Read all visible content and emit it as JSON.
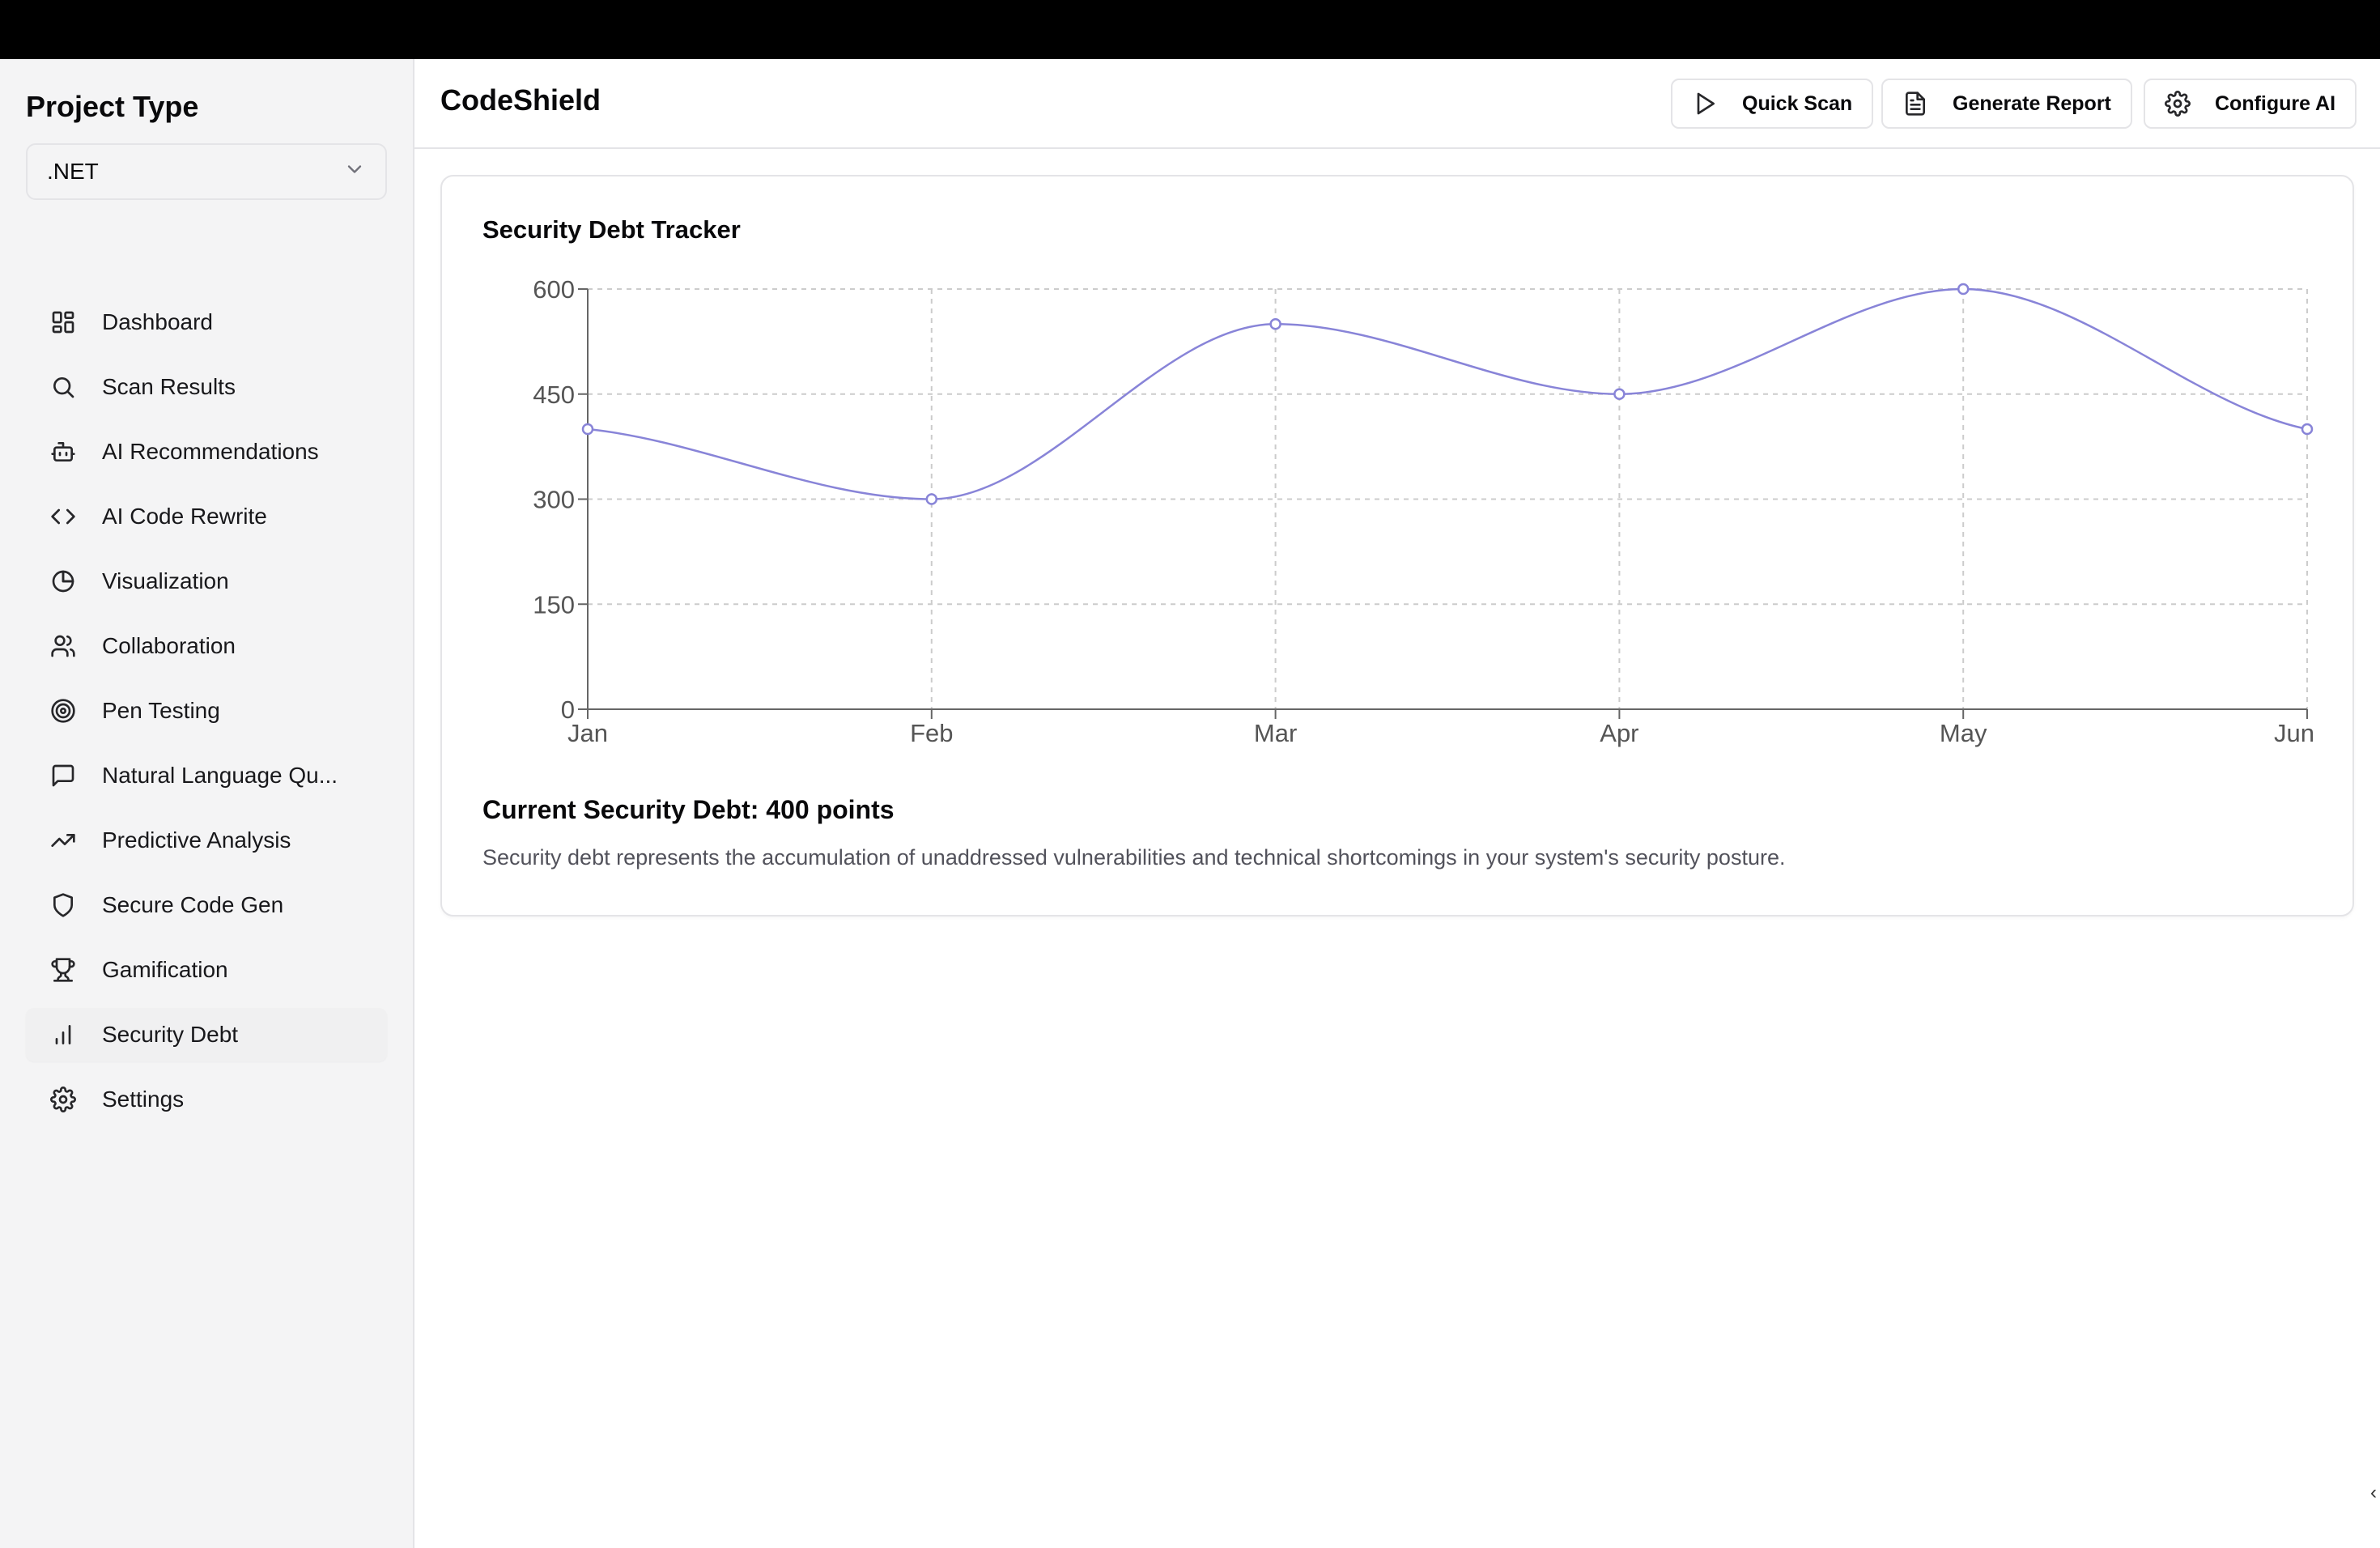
{
  "sidebar": {
    "title": "Project Type",
    "select": {
      "value": ".NET"
    },
    "items": [
      {
        "label": "Dashboard",
        "icon": "grid-icon"
      },
      {
        "label": "Scan Results",
        "icon": "search-icon"
      },
      {
        "label": "AI Recommendations",
        "icon": "bot-icon"
      },
      {
        "label": "AI Code Rewrite",
        "icon": "code-icon"
      },
      {
        "label": "Visualization",
        "icon": "pie-chart-icon"
      },
      {
        "label": "Collaboration",
        "icon": "users-icon"
      },
      {
        "label": "Pen Testing",
        "icon": "target-icon"
      },
      {
        "label": "Natural Language Qu...",
        "icon": "message-square-icon"
      },
      {
        "label": "Predictive Analysis",
        "icon": "trending-up-icon"
      },
      {
        "label": "Secure Code Gen",
        "icon": "shield-icon"
      },
      {
        "label": "Gamification",
        "icon": "trophy-icon"
      },
      {
        "label": "Security Debt",
        "icon": "bar-chart-icon",
        "active": true
      },
      {
        "label": "Settings",
        "icon": "gear-icon"
      }
    ]
  },
  "header": {
    "title": "CodeShield",
    "buttons": {
      "quick_scan": "Quick Scan",
      "generate_report": "Generate Report",
      "configure_ai": "Configure AI"
    }
  },
  "main": {
    "card_title": "Security Debt Tracker",
    "current_debt": "Current Security Debt: 400 points",
    "description": "Security debt represents the accumulation of unaddressed vulnerabilities and technical shortcomings in your system's security posture."
  },
  "chart_data": {
    "type": "line",
    "categories": [
      "Jan",
      "Feb",
      "Mar",
      "Apr",
      "May",
      "Jun"
    ],
    "series": [
      {
        "values": [
          400,
          300,
          550,
          450,
          600,
          400
        ],
        "color": "#8884d8"
      }
    ],
    "y_ticks": [
      0,
      150,
      300,
      450,
      600
    ],
    "ylim": [
      0,
      600
    ],
    "grid": true,
    "curve": "smooth"
  },
  "colors": {
    "line": "#8884d8",
    "grid": "#cccccc",
    "axis": "#666666"
  }
}
